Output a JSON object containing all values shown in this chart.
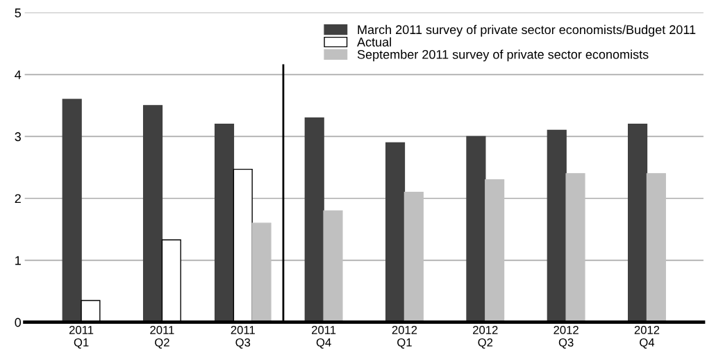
{
  "chart_data": {
    "type": "bar",
    "categories": [
      "2011\nQ1",
      "2011\nQ2",
      "2011\nQ3",
      "2011\nQ4",
      "2012\nQ1",
      "2012\nQ2",
      "2012\nQ3",
      "2012\nQ4"
    ],
    "series": [
      {
        "name": "March 2011 survey of private sector economists/Budget 2011",
        "color": "#404040",
        "values": [
          3.6,
          3.5,
          3.2,
          3.3,
          2.9,
          3.0,
          3.1,
          3.2
        ]
      },
      {
        "name": "Actual",
        "color": "#ffffff",
        "values": [
          0.35,
          1.33,
          2.47,
          null,
          null,
          null,
          null,
          null
        ]
      },
      {
        "name": "September 2011 survey of private sector economists",
        "color": "#c0c0c0",
        "values": [
          null,
          null,
          1.6,
          1.8,
          2.1,
          2.3,
          2.4,
          2.4
        ]
      }
    ],
    "ylim": [
      0,
      5
    ],
    "yticks": [
      0,
      1,
      2,
      3,
      4,
      5
    ],
    "grid": "y",
    "legend": "top right",
    "ref_lines": [
      {
        "axis": "x",
        "value": "2011\nQ4",
        "color": "#000000"
      }
    ]
  }
}
